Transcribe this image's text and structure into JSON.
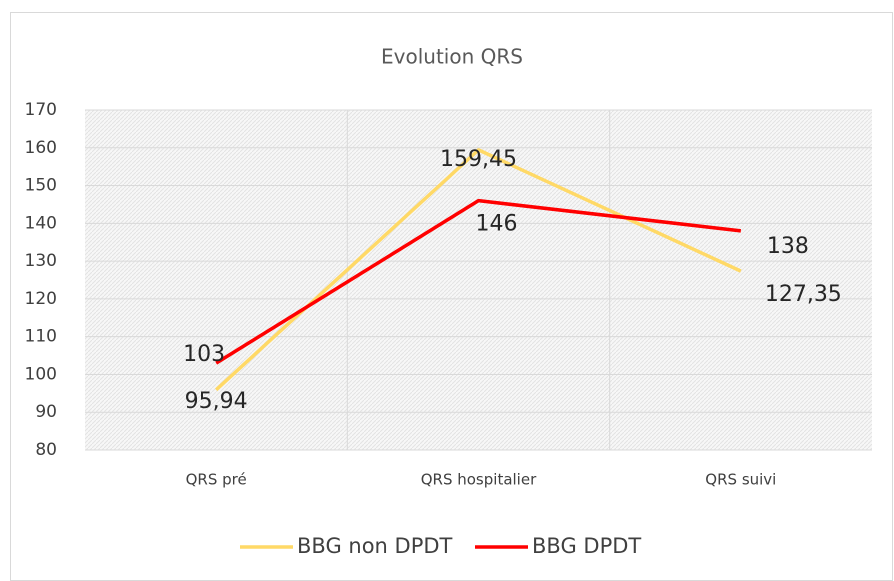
{
  "chart_data": {
    "type": "line",
    "title": "Evolution QRS",
    "categories": [
      "QRS pré",
      "QRS hospitalier",
      "QRS suivi"
    ],
    "series": [
      {
        "name": "BBG non DPDT",
        "color": "#ffd966",
        "values": [
          95.94,
          159.45,
          127.35
        ],
        "value_labels": [
          "95,94",
          "159,45",
          "127,35"
        ]
      },
      {
        "name": "BBG DPDT",
        "color": "#ff0000",
        "values": [
          103,
          146,
          138
        ]
      }
    ],
    "ylim": [
      80,
      170
    ],
    "yticks": [
      80,
      90,
      100,
      110,
      120,
      130,
      140,
      150,
      160,
      170
    ],
    "grid": true,
    "legend": "bottom"
  }
}
